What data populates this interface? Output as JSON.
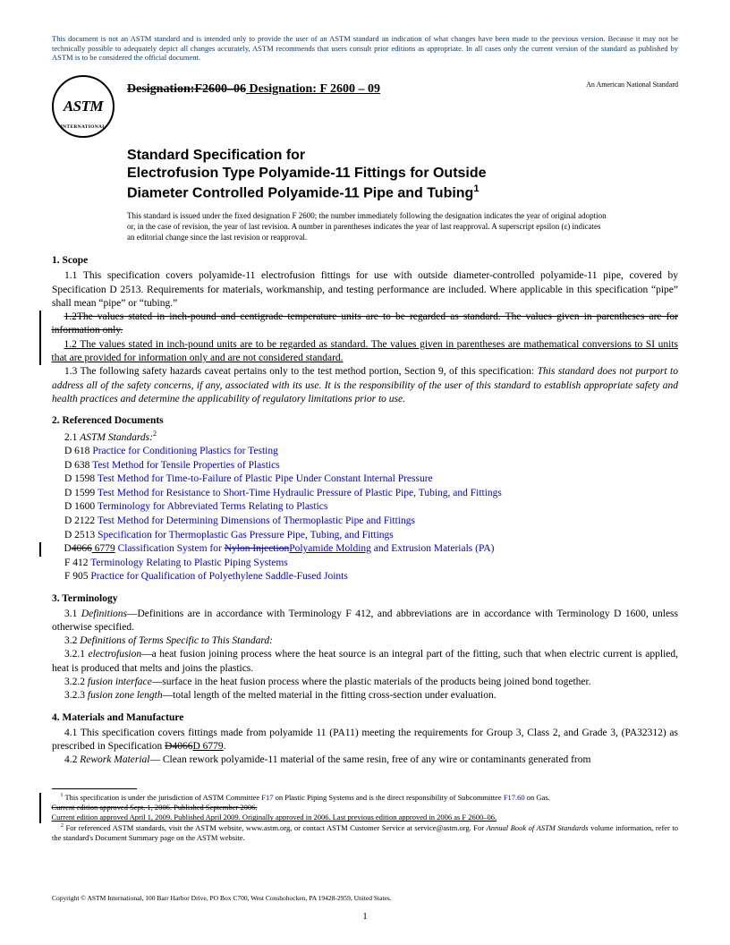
{
  "disclaimer": "This document is not an ASTM standard and is intended only to provide the user of an ASTM standard an indication of what changes have been made to the previous version. Because it may not be technically possible to adequately depict all changes accurately, ASTM recommends that users consult prior editions as appropriate. In all cases only the current version of the standard as published by ASTM is to be considered the official document.",
  "logo": {
    "main": "ASTM",
    "sub": "INTERNATIONAL"
  },
  "designation": {
    "struck": "Designation:F2600–06",
    "current": " Designation: F 2600 – 09",
    "anStd": "An American National Standard"
  },
  "title": {
    "line1": "Standard Specification for",
    "line2": "Electrofusion Type Polyamide-11 Fittings for Outside",
    "line3": "Diameter Controlled Polyamide-11 Pipe and Tubing",
    "sup": "1"
  },
  "issuance": "This standard is issued under the fixed designation F 2600; the number immediately following the designation indicates the year of original adoption or, in the case of revision, the year of last revision. A number in parentheses indicates the year of last reapproval. A superscript epsilon (ε) indicates an editorial change since the last revision or reapproval.",
  "sections": {
    "scope": {
      "head": "1. Scope",
      "p1": "1.1 This specification covers polyamide-11 electrofusion fittings for use with outside diameter-controlled polyamide-11 pipe, covered by Specification D 2513. Requirements for materials, workmanship, and testing performance are included. Where applicable in this specification “pipe” shall mean “pipe” or “tubing.”",
      "p2_struck": "1.2The values stated in inch-pound and centigrade temperature units are to be regarded as standard. The values given in parentheses are for information only.",
      "p2_new": "1.2 The values stated in inch-pound units are to be regarded as standard. The values given in parentheses are mathematical conversions to SI units that are provided for information only and are not considered standard.",
      "p3a": "1.3 The following safety hazards caveat pertains only to the test method portion, Section 9, of this specification: ",
      "p3b": "This standard does not purport to address all of the safety concerns, if any, associated with its use. It is the responsibility of the user of this standard to establish appropriate safety and health practices and determine the applicability of regulatory limitations prior to use."
    },
    "refs": {
      "head": "2. Referenced Documents",
      "lead_num": "2.1 ",
      "lead": "ASTM Standards:",
      "lead_sup": "2",
      "items": [
        {
          "num": "D 618",
          "title": "Practice for Conditioning Plastics for Testing"
        },
        {
          "num": "D 638",
          "title": "Test Method for Tensile Properties of Plastics"
        },
        {
          "num": "D 1598",
          "title": "Test Method for Time-to-Failure of Plastic Pipe Under Constant Internal Pressure"
        },
        {
          "num": "D 1599",
          "title": "Test Method for Resistance to Short-Time Hydraulic Pressure of Plastic Pipe, Tubing, and Fittings"
        },
        {
          "num": "D 1600",
          "title": "Terminology for Abbreviated Terms Relating to Plastics"
        },
        {
          "num": "D 2122",
          "title": "Test Method for Determining Dimensions of Thermoplastic Pipe and Fittings"
        },
        {
          "num": "D 2513",
          "title": "Specification for Thermoplastic Gas Pressure Pipe, Tubing, and Fittings"
        }
      ],
      "changeItem": {
        "prefix": "D",
        "struck1": "4066",
        "newnum": " 6779",
        "titlePre": "Classification System for ",
        "struck2": "Nylon Injection",
        "newtxt": "Polyamide Molding",
        "rest": " and Extrusion Materials (PA)"
      },
      "items2": [
        {
          "num": "F 412",
          "title": "Terminology Relating to Plastic Piping Systems"
        },
        {
          "num": "F 905",
          "title": "Practice for Qualification of Polyethylene Saddle-Fused Joints"
        }
      ]
    },
    "term": {
      "head": "3. Terminology",
      "p1a": "3.1 ",
      "p1b": "Definitions",
      "p1c": "—Definitions are in accordance with Terminology F 412, and abbreviations are in accordance with Terminology D 1600, unless otherwise specified.",
      "p2a": "3.2 ",
      "p2b": "Definitions of Terms Specific to This Standard:",
      "p3a": "3.2.1 ",
      "p3b": "electrofusion",
      "p3c": "—a heat fusion joining process where the heat source is an integral part of the fitting, such that when electric current is applied, heat is produced that melts and joins the plastics.",
      "p4a": "3.2.2 ",
      "p4b": "fusion interface",
      "p4c": "—surface in the heat fusion process where the plastic materials of the products being joined bond together.",
      "p5a": "3.2.3 ",
      "p5b": "fusion zone length",
      "p5c": "—total length of the melted material in the fitting cross-section under evaluation."
    },
    "mat": {
      "head": "4. Materials and Manufacture",
      "p1a": "4.1 This specification covers fittings made from polyamide 11 (PA11) meeting the requirements for Group 3, Class 2, and Grade 3, (PA32312) as prescribed in Specification ",
      "p1struck": "D4066",
      "p1new": "D 6779",
      "p1end": ".",
      "p2a": "4.2 ",
      "p2b": "Rework Material",
      "p2c": "— Clean rework polyamide-11 material of the same resin, free of any wire or contaminants generated from"
    }
  },
  "footnotes": {
    "rule": true,
    "f1sup": "1",
    "f1a": " This specification is under the jurisdiction of ASTM Committee ",
    "f1link1": "F17",
    "f1b": " on Plastic Piping Systems and is the direct responsibility of Subcommittee ",
    "f1link2": "F17.60",
    "f1c": " on Gas.",
    "f1_struck": "Current edition approved Sept. 1, 2006. Published September 2006.",
    "f1_new": "Current edition approved April 1, 2009. Published April 2009. Originally approved in 2006. Last previous edition approved in 2006 as F 2600–06.",
    "f2sup": "2",
    "f2a": " For referenced ASTM standards, visit the ASTM website, www.astm.org, or contact ASTM Customer Service at service@astm.org. For ",
    "f2i": "Annual Book of ASTM Standards",
    "f2b": " volume information, refer to the standard's Document Summary page on the ASTM website."
  },
  "copyright": "Copyright © ASTM International, 100 Barr Harbor Drive, PO Box C700, West Conshohocken, PA 19428-2959, United States.",
  "pageNum": "1"
}
